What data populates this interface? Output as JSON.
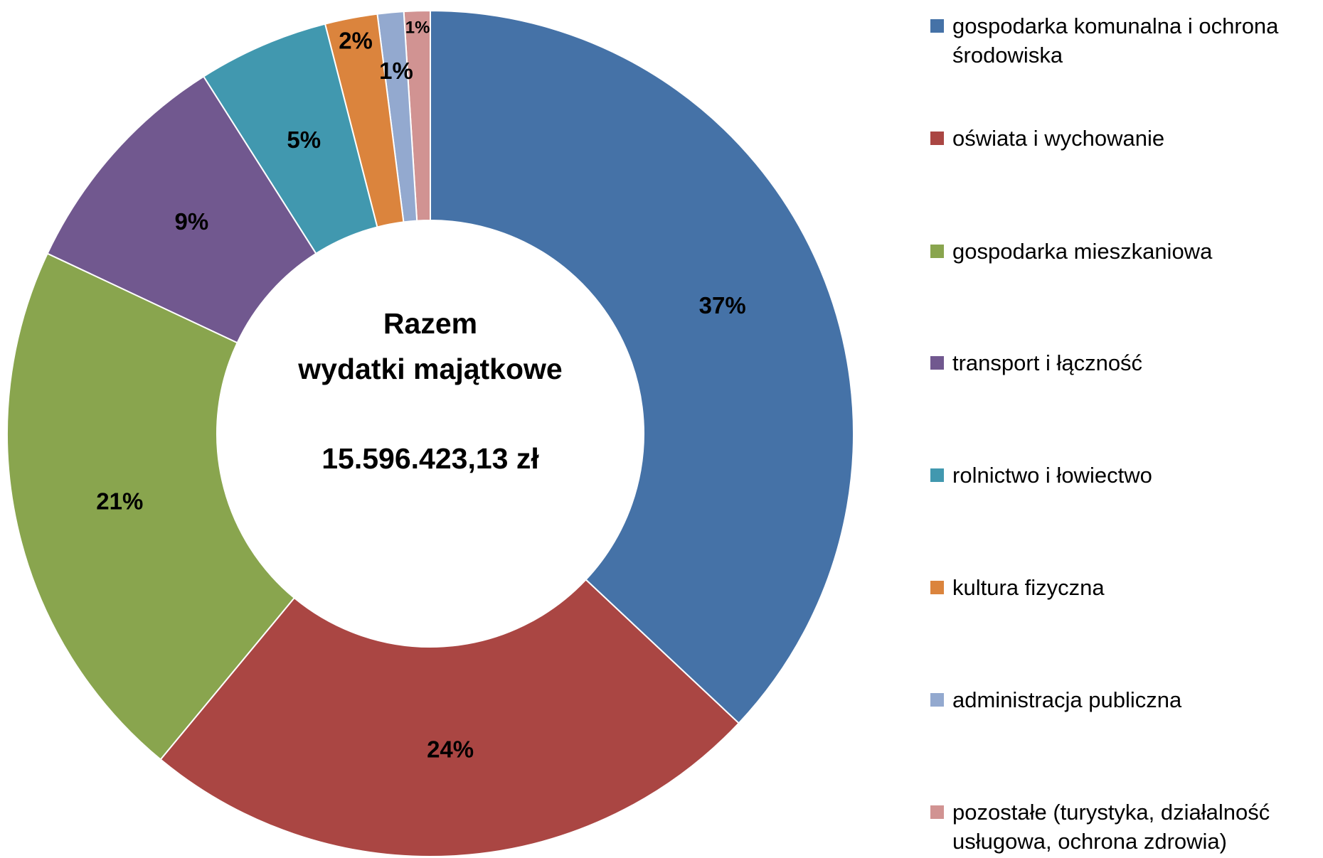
{
  "chart_data": {
    "type": "donut",
    "center_title": [
      "Razem",
      "wydatki majątkowe"
    ],
    "center_total": "15.596.423,13 zł",
    "categories": [
      "gospodarka komunalna i ochrona środowiska",
      "oświata i wychowanie",
      "gospodarka mieszkaniowa",
      "transport i łączność",
      "rolnictwo i łowiectwo",
      "kultura fizyczna",
      "administracja publiczna",
      "pozostałe (turystyka, działalność usługowa, ochrona zdrowia)"
    ],
    "values": [
      37,
      24,
      21,
      9,
      5,
      2,
      1,
      1
    ],
    "value_labels": [
      "37%",
      "24%",
      "21%",
      "9%",
      "5%",
      "2%",
      "1%",
      "1%"
    ],
    "colors": [
      "#4572a7",
      "#aa4643",
      "#89a54e",
      "#71588f",
      "#4198af",
      "#db843d",
      "#93a9cf",
      "#d19392"
    ],
    "legend": "right"
  }
}
